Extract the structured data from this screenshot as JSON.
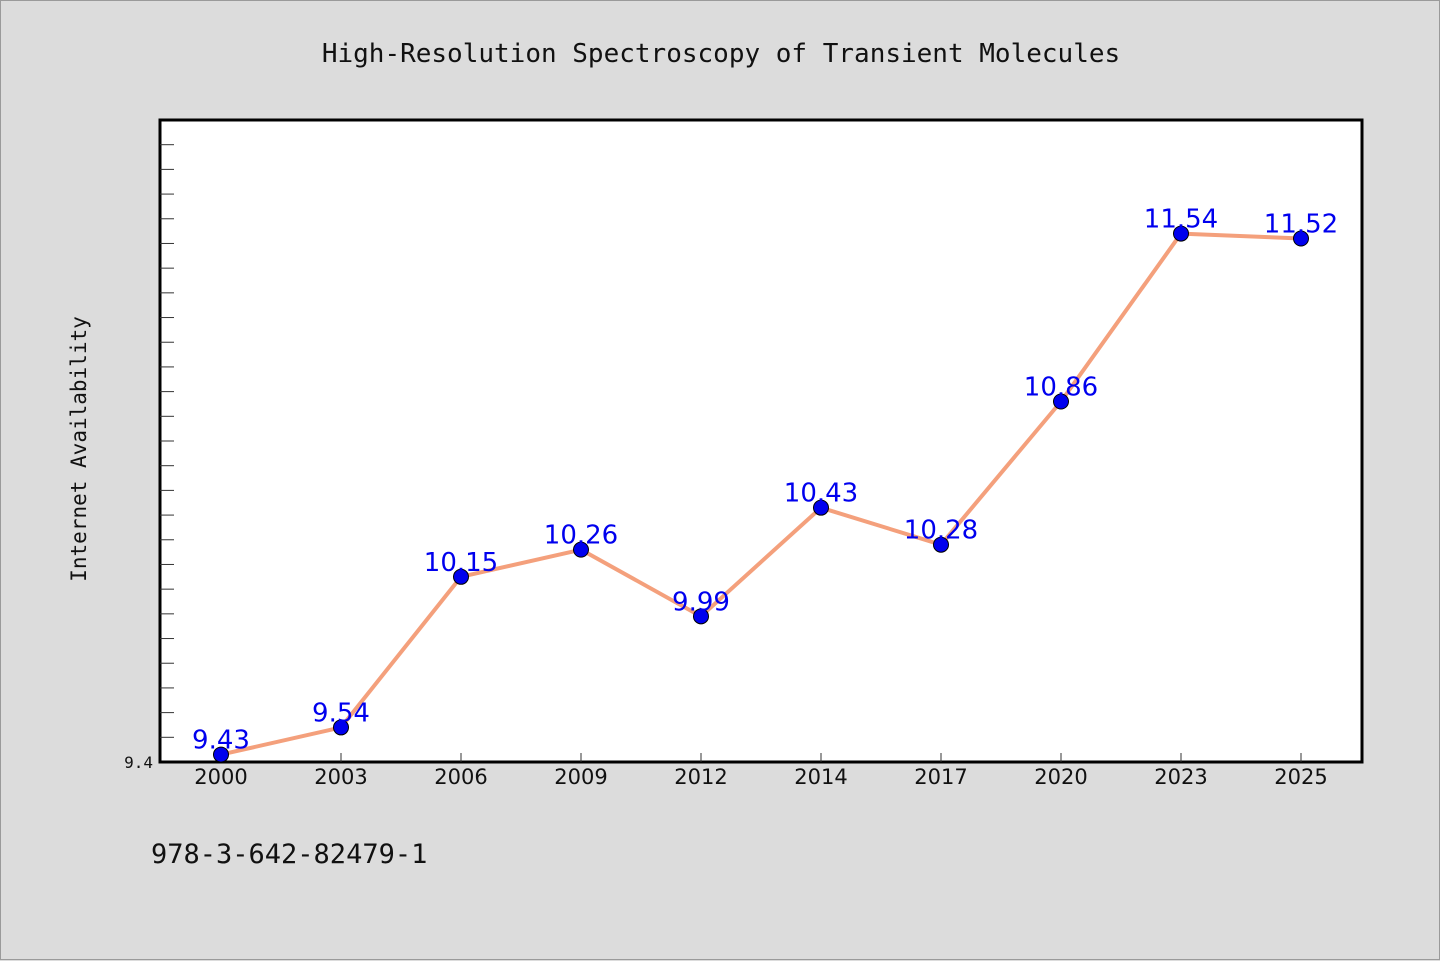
{
  "isbn": "978-3-642-82479-1",
  "chart_data": {
    "type": "line",
    "title": "High-Resolution Spectroscopy of Transient Molecules",
    "xlabel": "",
    "ylabel": "Internet Availability",
    "categories": [
      "2000",
      "2003",
      "2006",
      "2009",
      "2012",
      "2014",
      "2017",
      "2020",
      "2023",
      "2025"
    ],
    "series": [
      {
        "values": [
          9.43,
          9.54,
          10.15,
          10.26,
          9.99,
          10.43,
          10.28,
          10.86,
          11.54,
          11.52
        ],
        "data_labels": [
          "9.43",
          "9.54",
          "10.15",
          "10.26",
          "9.99",
          "10.43",
          "10.28",
          "10.86",
          "11.54",
          "11.52"
        ],
        "line_color": "#f4a07c",
        "marker_color": "#0000ee"
      }
    ],
    "ylim": [
      9.4,
      12.0
    ],
    "ytick_labels": [
      "9.4"
    ],
    "grid": false,
    "legend": "none"
  }
}
